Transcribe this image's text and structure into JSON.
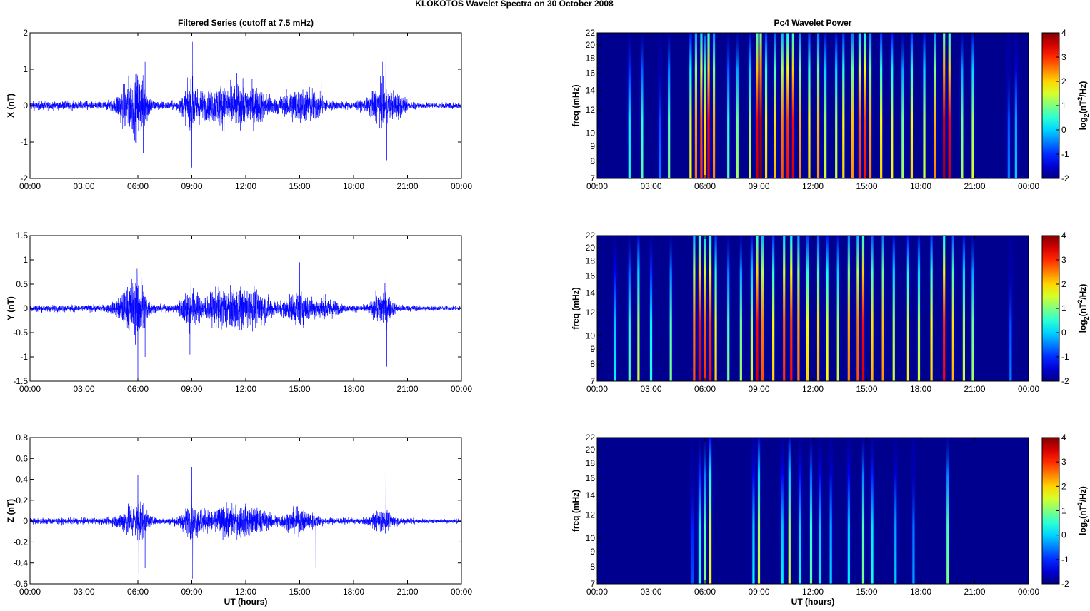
{
  "title": "KLOKOTOS Wavelet Spectra on 30 October   2008",
  "chart_data": [
    {
      "type": "line",
      "title": "Filtered Series (cutoff at 7.5 mHz)",
      "ylabel": "X (nT)",
      "xlabel": "",
      "xlim": [
        0,
        24
      ],
      "ylim": [
        -2,
        2
      ],
      "yticks": [
        "-2",
        "-1",
        "0",
        "1",
        "2"
      ],
      "ytick_values": [
        -2,
        -1,
        0,
        1,
        2
      ],
      "color": "#0000ff",
      "base_amplitude": 0.1,
      "bursts": [
        [
          5.5,
          0.6,
          0.55
        ],
        [
          6.2,
          0.4,
          0.5
        ],
        [
          9.0,
          0.5,
          0.45
        ],
        [
          10.8,
          1.2,
          0.4
        ],
        [
          12.5,
          1.0,
          0.3
        ],
        [
          14.8,
          0.8,
          0.3
        ],
        [
          15.8,
          0.5,
          0.25
        ],
        [
          19.5,
          0.6,
          0.4
        ],
        [
          20.4,
          0.4,
          0.2
        ]
      ],
      "spikes": [
        [
          5.35,
          1.0
        ],
        [
          5.9,
          -1.3
        ],
        [
          6.4,
          1.2
        ],
        [
          6.3,
          -1.3
        ],
        [
          9.0,
          -1.7
        ],
        [
          9.05,
          1.75
        ],
        [
          11.5,
          0.9
        ],
        [
          16.2,
          1.1
        ],
        [
          19.6,
          1.2
        ],
        [
          19.8,
          2.0
        ],
        [
          19.85,
          -1.5
        ]
      ]
    },
    {
      "type": "line",
      "title": "",
      "ylabel": "Y (nT)",
      "xlabel": "",
      "xlim": [
        0,
        24
      ],
      "ylim": [
        -1.5,
        1.5
      ],
      "yticks": [
        "-1.5",
        "-1",
        "-0.5",
        "0",
        "0.5",
        "1",
        "1.5"
      ],
      "ytick_values": [
        -1.5,
        -1,
        -0.5,
        0,
        0.5,
        1,
        1.5
      ],
      "color": "#0000ff",
      "base_amplitude": 0.06,
      "bursts": [
        [
          5.6,
          0.7,
          0.35
        ],
        [
          6.1,
          0.4,
          0.35
        ],
        [
          8.9,
          0.5,
          0.3
        ],
        [
          10.8,
          1.2,
          0.3
        ],
        [
          12.5,
          1.0,
          0.25
        ],
        [
          15.0,
          0.8,
          0.25
        ],
        [
          16.5,
          0.6,
          0.15
        ],
        [
          19.6,
          0.5,
          0.3
        ]
      ],
      "spikes": [
        [
          5.9,
          1.0
        ],
        [
          6.0,
          -1.5
        ],
        [
          6.4,
          -1.0
        ],
        [
          8.95,
          0.9
        ],
        [
          8.9,
          -0.95
        ],
        [
          10.9,
          0.8
        ],
        [
          15.0,
          0.95
        ],
        [
          19.8,
          1.0
        ],
        [
          19.85,
          -1.2
        ]
      ]
    },
    {
      "type": "line",
      "title": "",
      "ylabel": "Z (nT)",
      "xlabel": "UT (hours)",
      "xlim": [
        0,
        24
      ],
      "ylim": [
        -0.6,
        0.8
      ],
      "yticks": [
        "-0.6",
        "-0.4",
        "-0.2",
        "0",
        "0.2",
        "0.4",
        "0.6",
        "0.8"
      ],
      "ytick_values": [
        -0.6,
        -0.4,
        -0.2,
        0,
        0.2,
        0.4,
        0.6,
        0.8
      ],
      "color": "#0000ff",
      "base_amplitude": 0.025,
      "bursts": [
        [
          5.6,
          0.7,
          0.1
        ],
        [
          6.1,
          0.4,
          0.1
        ],
        [
          9.0,
          0.6,
          0.1
        ],
        [
          10.9,
          1.3,
          0.1
        ],
        [
          12.5,
          1.0,
          0.07
        ],
        [
          15.0,
          0.9,
          0.08
        ],
        [
          19.6,
          0.6,
          0.07
        ]
      ],
      "spikes": [
        [
          6.0,
          0.44
        ],
        [
          6.05,
          -0.5
        ],
        [
          6.4,
          -0.45
        ],
        [
          9.0,
          0.52
        ],
        [
          9.05,
          -0.55
        ],
        [
          10.9,
          0.36
        ],
        [
          15.9,
          -0.45
        ],
        [
          19.8,
          0.69
        ]
      ]
    },
    {
      "type": "heatmap",
      "title": "Pc4 Wavelet Power",
      "ylabel": "freq (mHz)",
      "xlabel": "",
      "xlim": [
        0,
        24
      ],
      "ylim": [
        7,
        22
      ],
      "yscale": "log",
      "yticks": [
        "7",
        "8",
        "9",
        "10",
        "12",
        "14",
        "16",
        "18",
        "20",
        "22"
      ],
      "ytick_values": [
        7,
        8,
        9,
        10,
        12,
        14,
        16,
        18,
        20,
        22
      ],
      "clim": [
        -2,
        4
      ],
      "events": [
        [
          1.8,
          0.5
        ],
        [
          2.5,
          0.8
        ],
        [
          3.5,
          -0.5
        ],
        [
          4.0,
          1.0
        ],
        [
          5.2,
          1.8
        ],
        [
          5.5,
          2.6
        ],
        [
          5.8,
          3.0
        ],
        [
          6.0,
          2.2
        ],
        [
          6.2,
          3.5
        ],
        [
          6.5,
          2.5
        ],
        [
          7.3,
          0.8
        ],
        [
          7.8,
          1.2
        ],
        [
          8.5,
          1.5
        ],
        [
          8.9,
          3.6
        ],
        [
          9.1,
          4.0
        ],
        [
          9.4,
          2.0
        ],
        [
          9.9,
          2.2
        ],
        [
          10.3,
          2.8
        ],
        [
          10.6,
          3.2
        ],
        [
          10.9,
          3.5
        ],
        [
          11.3,
          2.5
        ],
        [
          11.8,
          2.0
        ],
        [
          12.3,
          2.4
        ],
        [
          12.7,
          1.5
        ],
        [
          13.3,
          1.5
        ],
        [
          13.7,
          2.0
        ],
        [
          14.2,
          2.4
        ],
        [
          14.6,
          3.0
        ],
        [
          14.9,
          3.2
        ],
        [
          15.2,
          2.5
        ],
        [
          15.8,
          2.0
        ],
        [
          16.4,
          1.8
        ],
        [
          17.0,
          1.2
        ],
        [
          17.5,
          2.0
        ],
        [
          18.2,
          1.5
        ],
        [
          18.8,
          2.5
        ],
        [
          19.3,
          3.8
        ],
        [
          19.6,
          3.5
        ],
        [
          20.3,
          1.2
        ],
        [
          20.9,
          1.5
        ],
        [
          22.9,
          -0.5
        ],
        [
          23.3,
          0.0
        ]
      ],
      "colorbar_ticks": [
        "4",
        "3",
        "2",
        "1",
        "0",
        "-1",
        "-2"
      ],
      "colorbar_tick_values": [
        4,
        3,
        2,
        1,
        0,
        -1,
        -2
      ]
    },
    {
      "type": "heatmap",
      "title": "",
      "ylabel": "freq (mHz)",
      "xlabel": "",
      "xlim": [
        0,
        24
      ],
      "ylim": [
        7,
        22
      ],
      "yscale": "log",
      "yticks": [
        "7",
        "8",
        "9",
        "10",
        "12",
        "14",
        "16",
        "18",
        "20",
        "22"
      ],
      "ytick_values": [
        7,
        8,
        9,
        10,
        12,
        14,
        16,
        18,
        20,
        22
      ],
      "clim": [
        -2,
        4
      ],
      "events": [
        [
          1.0,
          0.2
        ],
        [
          1.8,
          0.8
        ],
        [
          2.3,
          1.5
        ],
        [
          3.0,
          0.5
        ],
        [
          4.1,
          1.0
        ],
        [
          5.4,
          2.8
        ],
        [
          5.7,
          3.5
        ],
        [
          6.0,
          3.0
        ],
        [
          6.3,
          3.2
        ],
        [
          6.6,
          2.0
        ],
        [
          7.3,
          1.0
        ],
        [
          8.0,
          1.2
        ],
        [
          8.6,
          1.5
        ],
        [
          8.9,
          3.5
        ],
        [
          9.2,
          2.8
        ],
        [
          9.8,
          2.0
        ],
        [
          10.4,
          3.0
        ],
        [
          10.8,
          3.2
        ],
        [
          11.2,
          2.6
        ],
        [
          11.7,
          2.0
        ],
        [
          12.3,
          2.2
        ],
        [
          12.8,
          1.8
        ],
        [
          13.4,
          1.5
        ],
        [
          14.0,
          2.5
        ],
        [
          14.5,
          2.8
        ],
        [
          14.8,
          3.5
        ],
        [
          15.3,
          2.2
        ],
        [
          15.9,
          2.4
        ],
        [
          16.5,
          1.5
        ],
        [
          17.3,
          1.8
        ],
        [
          17.9,
          1.5
        ],
        [
          18.6,
          2.0
        ],
        [
          19.3,
          3.3
        ],
        [
          19.8,
          2.2
        ],
        [
          20.4,
          1.5
        ],
        [
          20.9,
          1.2
        ],
        [
          23.0,
          -0.5
        ]
      ],
      "colorbar_ticks": [
        "4",
        "3",
        "2",
        "1",
        "0",
        "-1",
        "-2"
      ],
      "colorbar_tick_values": [
        4,
        3,
        2,
        1,
        0,
        -1,
        -2
      ]
    },
    {
      "type": "heatmap",
      "title": "",
      "ylabel": "freq (mHz)",
      "xlabel": "UT (hours)",
      "xlim": [
        0,
        24
      ],
      "ylim": [
        7,
        22
      ],
      "yscale": "log",
      "yticks": [
        "7",
        "8",
        "9",
        "10",
        "12",
        "14",
        "16",
        "18",
        "20",
        "22"
      ],
      "ytick_values": [
        7,
        8,
        9,
        10,
        12,
        14,
        16,
        18,
        20,
        22
      ],
      "clim": [
        -2,
        4
      ],
      "events": [
        [
          5.3,
          -0.8
        ],
        [
          5.7,
          0.5
        ],
        [
          6.0,
          1.0
        ],
        [
          6.3,
          1.8
        ],
        [
          8.7,
          0.2
        ],
        [
          9.0,
          1.5
        ],
        [
          10.3,
          0.2
        ],
        [
          10.7,
          1.5
        ],
        [
          11.3,
          0.3
        ],
        [
          11.9,
          0.8
        ],
        [
          12.4,
          0.2
        ],
        [
          13.0,
          0.0
        ],
        [
          14.0,
          0.2
        ],
        [
          14.8,
          1.0
        ],
        [
          15.3,
          0.4
        ],
        [
          16.6,
          0.0
        ],
        [
          17.6,
          -0.3
        ],
        [
          19.5,
          1.0
        ]
      ],
      "colorbar_ticks": [
        "4",
        "3",
        "2",
        "1",
        "0",
        "-1",
        "-2"
      ],
      "colorbar_tick_values": [
        4,
        3,
        2,
        1,
        0,
        -1,
        -2
      ]
    }
  ],
  "xticks": [
    "00:00",
    "03:00",
    "06:00",
    "09:00",
    "12:00",
    "15:00",
    "18:00",
    "21:00",
    "00:00"
  ],
  "xtick_values": [
    0,
    3,
    6,
    9,
    12,
    15,
    18,
    21,
    24
  ],
  "colorbar_label": {
    "a": "log",
    "sub": "2",
    "b": "(nT",
    "sup": "2",
    "c": "/Hz)"
  },
  "background_color": "#00008f"
}
